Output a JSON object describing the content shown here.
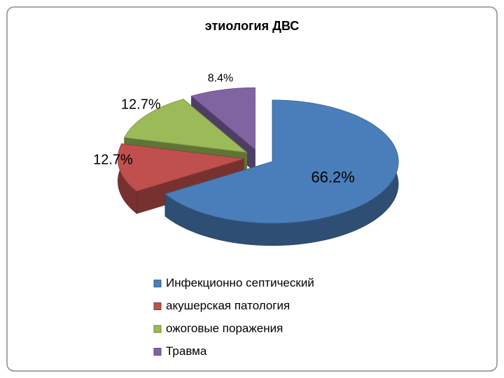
{
  "chart_data": {
    "type": "pie3d",
    "title": "этиология ДВС",
    "categories": [
      "Инфекционно септический",
      "акушерская патология",
      "ожоговые поражения",
      "Травма"
    ],
    "values": [
      66.2,
      12.7,
      12.7,
      8.4
    ],
    "value_labels": [
      "66.2%",
      "12.7%",
      "12.7%",
      "8.4%"
    ],
    "colors": [
      "#4a7ebb",
      "#c0504d",
      "#9bbb59",
      "#8064a2"
    ],
    "exploded": true,
    "legend": "bottom"
  }
}
